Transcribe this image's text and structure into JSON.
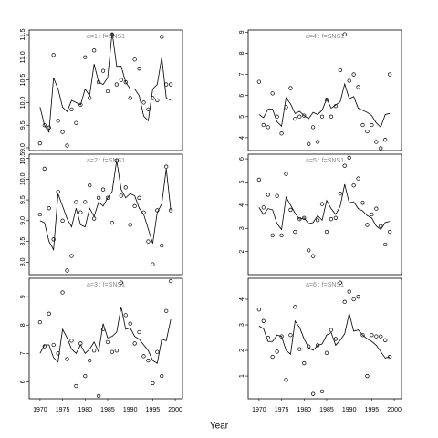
{
  "xlabel": "Year",
  "chart_data": [
    {
      "type": "scatter",
      "title": "a=1 : f=SNS1",
      "x": [
        1970,
        1971,
        1972,
        1973,
        1974,
        1975,
        1976,
        1977,
        1978,
        1979,
        1980,
        1981,
        1982,
        1983,
        1984,
        1985,
        1986,
        1987,
        1988,
        1989,
        1990,
        1991,
        1992,
        1993,
        1994,
        1995,
        1996,
        1997,
        1998,
        1999
      ],
      "series": [
        {
          "style": "points",
          "color": "#000000",
          "values": [
            9.1,
            9.5,
            9.45,
            11.05,
            9.6,
            9.35,
            9.05,
            9.85,
            9.55,
            9.95,
            11.0,
            10.1,
            11.15,
            10.45,
            10.7,
            10.25,
            11.5,
            10.4,
            10.5,
            10.45,
            10.1,
            10.95,
            10.75,
            10.0,
            9.85,
            10.1,
            10.05,
            11.45,
            10.4,
            10.4
          ]
        },
        {
          "style": "line",
          "color": "#000000",
          "values": [
            9.9,
            9.5,
            9.35,
            10.55,
            10.3,
            9.9,
            9.8,
            10.05,
            10.0,
            9.95,
            10.3,
            10.15,
            10.85,
            10.45,
            10.4,
            10.55,
            11.55,
            10.8,
            10.8,
            10.45,
            10.3,
            10.3,
            10.15,
            9.7,
            9.6,
            10.3,
            10.4,
            11.0,
            10.1,
            10.05
          ]
        }
      ],
      "xlim": [
        1967.6,
        2001.6
      ],
      "ylim": [
        8.94,
        11.6
      ],
      "yticks": [
        {
          "value": 9,
          "label": "9.0"
        },
        9.5,
        {
          "value": 10,
          "label": "10.0"
        },
        10.5,
        {
          "value": 11,
          "label": "11.0"
        },
        11.5
      ]
    },
    {
      "type": "scatter",
      "title": "a=2 : f=SNS1",
      "x": [
        1970,
        1971,
        1972,
        1973,
        1974,
        1975,
        1976,
        1977,
        1978,
        1979,
        1980,
        1981,
        1982,
        1983,
        1984,
        1985,
        1986,
        1987,
        1988,
        1989,
        1990,
        1991,
        1992,
        1993,
        1994,
        1995,
        1996,
        1997,
        1998,
        1999
      ],
      "series": [
        {
          "style": "points",
          "color": "#000000",
          "values": [
            9.15,
            10.25,
            9.3,
            8.55,
            9.7,
            9.0,
            7.8,
            8.15,
            9.45,
            9.2,
            9.45,
            9.85,
            9.05,
            9.55,
            9.75,
            9.55,
            8.95,
            10.45,
            9.6,
            9.8,
            8.9,
            9.35,
            9.55,
            9.2,
            8.5,
            7.95,
            9.25,
            8.4,
            10.3,
            9.25
          ]
        },
        {
          "style": "line",
          "color": "#000000",
          "values": [
            9.0,
            8.95,
            8.5,
            8.3,
            9.65,
            9.35,
            9.05,
            8.85,
            9.3,
            8.9,
            8.85,
            9.3,
            9.1,
            9.45,
            9.35,
            9.55,
            9.7,
            10.45,
            9.75,
            9.55,
            9.65,
            9.6,
            9.3,
            9.15,
            8.8,
            8.45,
            9.2,
            9.4,
            10.25,
            9.25
          ]
        }
      ],
      "xlim": [
        1967.6,
        2001.6
      ],
      "ylim": [
        7.7,
        10.6
      ],
      "yticks": [
        {
          "value": 8,
          "label": "8.0"
        },
        8.5,
        {
          "value": 9,
          "label": "9.0"
        },
        9.5,
        {
          "value": 10,
          "label": "10.0"
        },
        10.5
      ]
    },
    {
      "type": "scatter",
      "title": "a=3 : f=SNS1",
      "x": [
        1970,
        1971,
        1972,
        1973,
        1974,
        1975,
        1976,
        1977,
        1978,
        1979,
        1980,
        1981,
        1982,
        1983,
        1984,
        1985,
        1986,
        1987,
        1988,
        1989,
        1990,
        1991,
        1992,
        1993,
        1994,
        1995,
        1996,
        1997,
        1998,
        1999
      ],
      "series": [
        {
          "style": "points",
          "color": "#000000",
          "values": [
            8.1,
            7.25,
            8.4,
            7.3,
            7.0,
            9.15,
            6.8,
            7.45,
            5.85,
            7.35,
            6.2,
            6.75,
            7.1,
            5.5,
            7.85,
            7.4,
            7.05,
            7.1,
            9.5,
            8.35,
            8.05,
            7.35,
            7.75,
            6.9,
            6.75,
            5.95,
            7.05,
            6.2,
            8.5,
            9.55
          ]
        },
        {
          "style": "line",
          "color": "#000000",
          "values": [
            7.0,
            7.3,
            7.3,
            6.85,
            6.7,
            7.85,
            7.55,
            7.15,
            7.0,
            7.3,
            7.0,
            7.15,
            7.4,
            7.05,
            8.05,
            7.55,
            7.6,
            7.75,
            8.65,
            7.85,
            7.9,
            7.6,
            7.5,
            7.3,
            7.1,
            6.75,
            6.65,
            7.5,
            7.45,
            8.2
          ]
        }
      ],
      "xlim": [
        1967.6,
        2001.6
      ],
      "ylim": [
        5.4,
        9.65
      ],
      "yticks": [
        6,
        7,
        8,
        9
      ],
      "xticks": [
        1970,
        1975,
        1980,
        1985,
        1990,
        1995,
        2000
      ]
    },
    {
      "type": "scatter",
      "title": "a=4 : f=SNS1",
      "x": [
        1970,
        1971,
        1972,
        1973,
        1974,
        1975,
        1976,
        1977,
        1978,
        1979,
        1980,
        1981,
        1982,
        1983,
        1984,
        1985,
        1986,
        1987,
        1988,
        1989,
        1990,
        1991,
        1992,
        1993,
        1994,
        1995,
        1996,
        1997,
        1998,
        1999
      ],
      "series": [
        {
          "style": "points",
          "color": "#000000",
          "values": [
            6.65,
            4.6,
            4.5,
            6.1,
            5.0,
            4.2,
            5.45,
            6.35,
            4.9,
            5.0,
            5.05,
            3.7,
            4.5,
            3.8,
            5.0,
            5.8,
            5.0,
            5.5,
            7.2,
            8.9,
            6.7,
            7.0,
            6.4,
            4.6,
            4.3,
            4.6,
            3.8,
            3.5,
            3.9,
            7.0
          ]
        },
        {
          "style": "line",
          "color": "#000000",
          "values": [
            5.1,
            4.95,
            5.35,
            5.35,
            4.75,
            4.55,
            5.9,
            5.6,
            5.15,
            5.25,
            5.05,
            4.9,
            5.2,
            5.1,
            5.3,
            5.85,
            5.4,
            5.55,
            5.7,
            6.55,
            5.85,
            5.95,
            5.4,
            5.3,
            5.2,
            5.05,
            4.7,
            4.5,
            5.1,
            5.15
          ]
        }
      ],
      "xlim": [
        1967.6,
        2001.6
      ],
      "ylim": [
        3.39,
        9.1
      ],
      "yticks": [
        4,
        5,
        6,
        7,
        8,
        9
      ]
    },
    {
      "type": "scatter",
      "title": "a=5 : f=SNS1",
      "x": [
        1970,
        1971,
        1972,
        1973,
        1974,
        1975,
        1976,
        1977,
        1978,
        1979,
        1980,
        1981,
        1982,
        1983,
        1984,
        1985,
        1986,
        1987,
        1988,
        1989,
        1990,
        1991,
        1992,
        1993,
        1994,
        1995,
        1996,
        1997,
        1998,
        1999
      ],
      "series": [
        {
          "style": "points",
          "color": "#000000",
          "values": [
            5.1,
            3.9,
            4.45,
            2.7,
            4.4,
            2.7,
            5.35,
            3.8,
            2.85,
            3.4,
            3.45,
            2.05,
            1.8,
            3.35,
            4.05,
            2.85,
            3.4,
            3.45,
            4.5,
            5.7,
            6.05,
            4.85,
            5.15,
            4.1,
            3.15,
            3.6,
            3.85,
            3.1,
            2.3,
            2.85
          ]
        },
        {
          "style": "line",
          "color": "#000000",
          "values": [
            3.9,
            3.6,
            3.85,
            3.8,
            3.2,
            2.95,
            4.35,
            4.0,
            3.65,
            3.4,
            3.45,
            3.2,
            3.25,
            3.55,
            3.35,
            4.2,
            3.85,
            3.6,
            3.95,
            4.9,
            4.1,
            4.15,
            3.85,
            3.75,
            3.55,
            3.45,
            3.1,
            2.95,
            3.25,
            3.3
          ]
        }
      ],
      "xlim": [
        1967.6,
        2001.6
      ],
      "ylim": [
        1.0,
        6.2
      ],
      "yticks": [
        2,
        3,
        4,
        5,
        6
      ]
    },
    {
      "type": "scatter",
      "title": "a=6 : f=SNS1",
      "x": [
        1970,
        1971,
        1972,
        1973,
        1974,
        1975,
        1976,
        1977,
        1978,
        1979,
        1980,
        1981,
        1982,
        1983,
        1984,
        1985,
        1986,
        1987,
        1988,
        1989,
        1990,
        1991,
        1992,
        1993,
        1994,
        1995,
        1996,
        1997,
        1998,
        1999
      ],
      "series": [
        {
          "style": "points",
          "color": "#000000",
          "values": [
            3.6,
            3.15,
            2.5,
            1.75,
            1.95,
            2.55,
            0.85,
            2.6,
            3.7,
            2.05,
            1.5,
            2.15,
            0.3,
            2.2,
            0.4,
            1.9,
            2.8,
            2.45,
            4.65,
            3.9,
            4.3,
            4.0,
            4.1,
            2.6,
            1.0,
            2.6,
            2.55,
            2.55,
            2.4,
            1.75
          ]
        },
        {
          "style": "line",
          "color": "#000000",
          "values": [
            2.95,
            2.85,
            2.35,
            2.35,
            2.6,
            2.55,
            2.0,
            1.85,
            3.15,
            2.9,
            2.45,
            2.1,
            2.0,
            2.2,
            2.25,
            2.6,
            2.7,
            2.2,
            2.4,
            2.65,
            3.45,
            2.75,
            2.8,
            2.6,
            2.45,
            2.35,
            2.2,
            1.95,
            1.7,
            1.75
          ]
        }
      ],
      "xlim": [
        1967.6,
        2001.6
      ],
      "ylim": [
        0.11,
        4.82
      ],
      "yticks": [
        1,
        2,
        3,
        4
      ],
      "xticks": [
        1970,
        1975,
        1980,
        1985,
        1990,
        1995,
        2000
      ]
    }
  ]
}
